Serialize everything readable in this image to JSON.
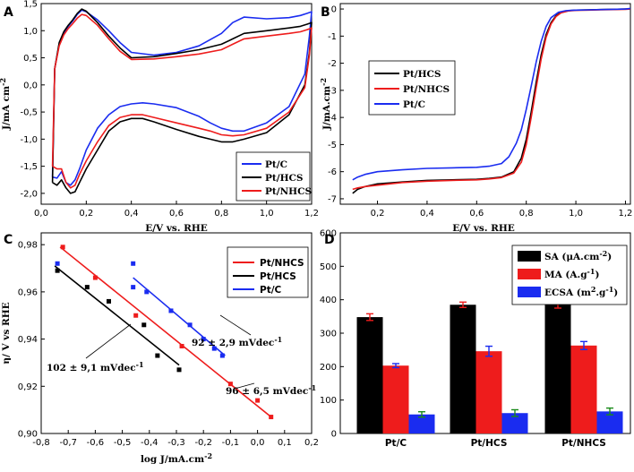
{
  "colors": {
    "red": "#ee1c1c",
    "black": "#000000",
    "blue": "#1a2cf0"
  },
  "chart_data": [
    {
      "id": "A",
      "panel_label": "A",
      "type": "line",
      "xlabel": "E/V vs. RHE",
      "ylabel": "J/mA cm-2",
      "xlim": [
        0.0,
        1.2
      ],
      "ylim": [
        -2.2,
        1.5
      ],
      "xticks": [
        "0,0",
        "0,2",
        "0,4",
        "0,6",
        "0,8",
        "1,0",
        "1,2"
      ],
      "yticks": [
        "1,5",
        "1,0",
        "0,5",
        "0,0",
        "-0,5",
        "-1,0",
        "-1,5",
        "-2,0"
      ],
      "legend": [
        "Pt/C",
        "Pt/HCS",
        "Pt/NHCS"
      ],
      "series": [
        {
          "name": "Pt/C",
          "color": "blue",
          "x": [
            0.05,
            0.06,
            0.08,
            0.1,
            0.12,
            0.14,
            0.16,
            0.18,
            0.2,
            0.25,
            0.3,
            0.35,
            0.4,
            0.5,
            0.6,
            0.7,
            0.8,
            0.85,
            0.9,
            1.0,
            1.1,
            1.15,
            1.18,
            1.2,
            1.19,
            1.17,
            1.1,
            1.0,
            0.9,
            0.85,
            0.8,
            0.75,
            0.7,
            0.6,
            0.5,
            0.45,
            0.4,
            0.35,
            0.3,
            0.25,
            0.2,
            0.17,
            0.15,
            0.13,
            0.11,
            0.09,
            0.07,
            0.05
          ],
          "y": [
            -1.7,
            0.3,
            0.75,
            0.95,
            1.08,
            1.18,
            1.3,
            1.38,
            1.35,
            1.2,
            1.0,
            0.78,
            0.6,
            0.55,
            0.6,
            0.72,
            0.95,
            1.15,
            1.25,
            1.22,
            1.24,
            1.28,
            1.32,
            1.35,
            0.9,
            0.2,
            -0.4,
            -0.7,
            -0.85,
            -0.85,
            -0.8,
            -0.7,
            -0.58,
            -0.42,
            -0.35,
            -0.33,
            -0.35,
            -0.4,
            -0.55,
            -0.8,
            -1.2,
            -1.55,
            -1.75,
            -1.85,
            -1.8,
            -1.6,
            -1.72,
            -1.7
          ]
        },
        {
          "name": "Pt/HCS",
          "color": "black",
          "x": [
            0.05,
            0.06,
            0.08,
            0.1,
            0.12,
            0.14,
            0.16,
            0.18,
            0.2,
            0.25,
            0.3,
            0.35,
            0.4,
            0.5,
            0.6,
            0.7,
            0.8,
            0.85,
            0.9,
            1.0,
            1.1,
            1.15,
            1.18,
            1.2,
            1.19,
            1.17,
            1.1,
            1.0,
            0.9,
            0.85,
            0.8,
            0.75,
            0.7,
            0.6,
            0.5,
            0.45,
            0.4,
            0.35,
            0.3,
            0.25,
            0.2,
            0.17,
            0.15,
            0.13,
            0.11,
            0.09,
            0.07,
            0.05
          ],
          "y": [
            -1.8,
            0.3,
            0.78,
            0.98,
            1.1,
            1.2,
            1.32,
            1.4,
            1.36,
            1.15,
            0.9,
            0.68,
            0.5,
            0.52,
            0.58,
            0.65,
            0.75,
            0.85,
            0.95,
            1.0,
            1.05,
            1.08,
            1.12,
            1.15,
            0.6,
            0.0,
            -0.55,
            -0.88,
            -1.0,
            -1.05,
            -1.05,
            -1.0,
            -0.95,
            -0.82,
            -0.68,
            -0.62,
            -0.62,
            -0.68,
            -0.85,
            -1.2,
            -1.55,
            -1.8,
            -1.97,
            -2.0,
            -1.9,
            -1.75,
            -1.85,
            -1.8
          ]
        },
        {
          "name": "Pt/NHCS",
          "color": "red",
          "x": [
            0.05,
            0.06,
            0.08,
            0.1,
            0.12,
            0.14,
            0.16,
            0.18,
            0.2,
            0.25,
            0.3,
            0.35,
            0.4,
            0.5,
            0.6,
            0.7,
            0.8,
            0.85,
            0.9,
            1.0,
            1.1,
            1.15,
            1.18,
            1.2,
            1.19,
            1.17,
            1.1,
            1.0,
            0.9,
            0.85,
            0.8,
            0.75,
            0.7,
            0.6,
            0.5,
            0.45,
            0.4,
            0.35,
            0.3,
            0.25,
            0.2,
            0.17,
            0.15,
            0.13,
            0.11,
            0.09,
            0.07,
            0.05
          ],
          "y": [
            -1.5,
            0.3,
            0.72,
            0.92,
            1.04,
            1.13,
            1.23,
            1.3,
            1.28,
            1.1,
            0.85,
            0.62,
            0.47,
            0.48,
            0.52,
            0.57,
            0.65,
            0.75,
            0.85,
            0.9,
            0.95,
            0.98,
            1.02,
            1.05,
            0.55,
            -0.05,
            -0.5,
            -0.8,
            -0.92,
            -0.94,
            -0.92,
            -0.85,
            -0.8,
            -0.7,
            -0.6,
            -0.55,
            -0.55,
            -0.6,
            -0.75,
            -1.05,
            -1.4,
            -1.65,
            -1.85,
            -1.9,
            -1.8,
            -1.55,
            -1.55,
            -1.5
          ]
        }
      ]
    },
    {
      "id": "B",
      "panel_label": "B",
      "type": "line",
      "xlabel": "E/V vs. RHE",
      "ylabel": "J/mA.cm-2",
      "xlim": [
        0.05,
        1.22
      ],
      "ylim": [
        -7.2,
        0.2
      ],
      "xticks": [
        "0,2",
        "0,4",
        "0,6",
        "0,8",
        "1,0",
        "1,2"
      ],
      "yticks": [
        "0",
        "-1",
        "-2",
        "-3",
        "-4",
        "-5",
        "-6",
        "-7"
      ],
      "legend": [
        "Pt/HCS",
        "Pt/NHCS",
        "Pt/C"
      ],
      "series": [
        {
          "name": "Pt/HCS",
          "color": "black",
          "x": [
            0.1,
            0.12,
            0.15,
            0.2,
            0.3,
            0.4,
            0.5,
            0.6,
            0.65,
            0.7,
            0.75,
            0.78,
            0.8,
            0.82,
            0.84,
            0.86,
            0.88,
            0.9,
            0.92,
            0.94,
            0.97,
            1.0,
            1.05,
            1.1,
            1.15,
            1.2,
            1.22
          ],
          "y": [
            -6.8,
            -6.65,
            -6.55,
            -6.45,
            -6.38,
            -6.32,
            -6.3,
            -6.28,
            -6.25,
            -6.2,
            -6.0,
            -5.5,
            -4.8,
            -3.8,
            -2.7,
            -1.7,
            -0.95,
            -0.5,
            -0.25,
            -0.12,
            -0.06,
            -0.04,
            -0.03,
            -0.02,
            -0.01,
            -0.0,
            0.0
          ]
        },
        {
          "name": "Pt/NHCS",
          "color": "red",
          "x": [
            0.1,
            0.12,
            0.15,
            0.2,
            0.3,
            0.4,
            0.5,
            0.6,
            0.65,
            0.7,
            0.75,
            0.78,
            0.8,
            0.82,
            0.84,
            0.86,
            0.88,
            0.9,
            0.92,
            0.94,
            0.97,
            1.0,
            1.05,
            1.1,
            1.15,
            1.2,
            1.22
          ],
          "y": [
            -6.65,
            -6.6,
            -6.55,
            -6.5,
            -6.4,
            -6.35,
            -6.32,
            -6.3,
            -6.27,
            -6.22,
            -6.05,
            -5.65,
            -5.0,
            -4.0,
            -2.9,
            -1.85,
            -1.05,
            -0.55,
            -0.28,
            -0.14,
            -0.07,
            -0.05,
            -0.04,
            -0.03,
            -0.02,
            -0.01,
            0.0
          ]
        },
        {
          "name": "Pt/C",
          "color": "blue",
          "x": [
            0.1,
            0.12,
            0.15,
            0.2,
            0.3,
            0.4,
            0.5,
            0.6,
            0.65,
            0.7,
            0.73,
            0.76,
            0.78,
            0.8,
            0.82,
            0.84,
            0.86,
            0.88,
            0.9,
            0.93,
            0.96,
            1.0,
            1.05,
            1.1,
            1.15,
            1.2,
            1.22
          ],
          "y": [
            -6.3,
            -6.2,
            -6.1,
            -6.0,
            -5.93,
            -5.88,
            -5.86,
            -5.84,
            -5.8,
            -5.7,
            -5.45,
            -4.95,
            -4.45,
            -3.7,
            -2.85,
            -1.95,
            -1.2,
            -0.65,
            -0.32,
            -0.12,
            -0.06,
            -0.04,
            -0.03,
            -0.02,
            -0.01,
            0.0,
            0.02
          ]
        }
      ]
    },
    {
      "id": "C",
      "panel_label": "C",
      "type": "scatter",
      "xlabel": "log J/mA.cm-2",
      "ylabel": "η/ V vs RHE",
      "xlim": [
        -0.8,
        0.2
      ],
      "ylim": [
        0.9,
        0.985
      ],
      "xticks": [
        "-0,8",
        "-0,7",
        "-0,6",
        "-0,5",
        "-0,4",
        "-0,3",
        "-0,2",
        "-0,1",
        "0,0",
        "0,1",
        "0,2"
      ],
      "yticks": [
        "0,98",
        "0,96",
        "0,94",
        "0,92",
        "0,90"
      ],
      "legend": [
        "Pt/NHCS",
        "Pt/HCS",
        "Pt/C"
      ],
      "annotations": [
        "92 ± 2,9 mVdec-1",
        "102 ± 9,1 mVdec-1",
        "96 ± 6,5 mVdec-1"
      ],
      "series": [
        {
          "name": "Pt/NHCS",
          "color": "red",
          "x": [
            -0.72,
            -0.6,
            -0.45,
            -0.28,
            -0.1,
            0.0,
            0.05
          ],
          "y": [
            0.979,
            0.966,
            0.95,
            0.937,
            0.921,
            0.914,
            0.907
          ],
          "fit": [
            [
              -0.73,
              0.979
            ],
            [
              0.05,
              0.907
            ]
          ]
        },
        {
          "name": "Pt/HCS",
          "color": "black",
          "x": [
            -0.74,
            -0.63,
            -0.55,
            -0.42,
            -0.37,
            -0.29
          ],
          "y": [
            0.969,
            0.962,
            0.956,
            0.946,
            0.933,
            0.927
          ],
          "fit": [
            [
              -0.75,
              0.971
            ],
            [
              -0.29,
              0.929
            ]
          ]
        },
        {
          "name": "Pt/C",
          "color": "blue",
          "x": [
            -0.74,
            -0.46,
            -0.46,
            -0.41,
            -0.32,
            -0.25,
            -0.2,
            -0.16,
            -0.13
          ],
          "y": [
            0.972,
            0.972,
            0.962,
            0.96,
            0.952,
            0.946,
            0.94,
            0.936,
            0.933
          ],
          "fit": [
            [
              -0.46,
              0.966
            ],
            [
              -0.12,
              0.933
            ]
          ]
        }
      ]
    },
    {
      "id": "D",
      "panel_label": "D",
      "type": "bar",
      "categories": [
        "Pt/C",
        "Pt/HCS",
        "Pt/NHCS"
      ],
      "ylim": [
        0,
        600
      ],
      "yticks": [
        "0",
        "100",
        "200",
        "300",
        "400",
        "500",
        "600"
      ],
      "legend": [
        "SA (μA.cm-2)",
        "MA (A.g-1)",
        "ECSA (m2.g-1)"
      ],
      "series": [
        {
          "name": "SA",
          "color": "black",
          "values": [
            348,
            385,
            390
          ],
          "errors": [
            10,
            8,
            15
          ]
        },
        {
          "name": "MA",
          "color": "red",
          "values": [
            203,
            246,
            263
          ],
          "errors": [
            6,
            15,
            12
          ]
        },
        {
          "name": "ECSA",
          "color": "blue",
          "values": [
            57,
            61,
            66
          ],
          "errors": [
            8,
            10,
            10
          ]
        }
      ]
    }
  ]
}
